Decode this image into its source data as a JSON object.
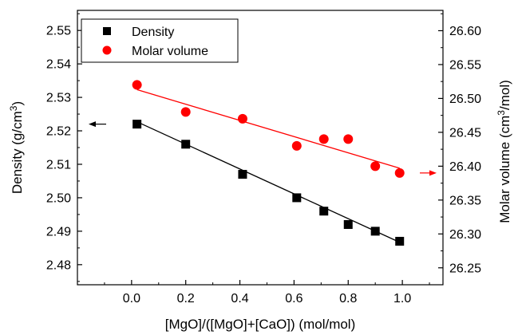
{
  "chart_data": {
    "type": "scatter",
    "xlabel": "[MgO]/([MgO]+[CaO]) (mol/mol)",
    "ylabel_left": {
      "pre": "Density (g/cm",
      "sup": "3",
      "post": ")"
    },
    "ylabel_right": {
      "pre": "Molar volume (cm",
      "sup": "3",
      "post": "/mol)"
    },
    "xlim": [
      -0.2,
      1.15
    ],
    "ylim_left": [
      2.474,
      2.556
    ],
    "ylim_right": [
      26.225,
      26.63
    ],
    "x_ticks": [
      "0.0",
      "0.2",
      "0.4",
      "0.6",
      "0.8",
      "1.0"
    ],
    "y_left_ticks": [
      "2.48",
      "2.49",
      "2.50",
      "2.51",
      "2.52",
      "2.53",
      "2.54",
      "2.55"
    ],
    "y_right_ticks": [
      "26.25",
      "26.30",
      "26.35",
      "26.40",
      "26.45",
      "26.50",
      "26.55",
      "26.60"
    ],
    "legend_position": "top-left",
    "series": [
      {
        "name": "Density",
        "axis": "left",
        "marker": "square",
        "color": "#000000",
        "x": [
          0.02,
          0.2,
          0.41,
          0.61,
          0.71,
          0.8,
          0.9,
          0.99
        ],
        "y": [
          2.522,
          2.516,
          2.507,
          2.5,
          2.496,
          2.492,
          2.49,
          2.487
        ],
        "fit": {
          "x": [
            0.02,
            0.99
          ],
          "y": [
            2.5227,
            2.4867
          ]
        }
      },
      {
        "name": "Molar volume",
        "axis": "right",
        "marker": "circle",
        "color": "#ff0000",
        "x": [
          0.02,
          0.2,
          0.41,
          0.61,
          0.71,
          0.8,
          0.9,
          0.99
        ],
        "y": [
          26.52,
          26.48,
          26.47,
          26.43,
          26.44,
          26.44,
          26.4,
          26.39
        ],
        "fit": {
          "x": [
            0.02,
            0.99
          ],
          "y": [
            26.513,
            26.397
          ]
        }
      }
    ]
  }
}
